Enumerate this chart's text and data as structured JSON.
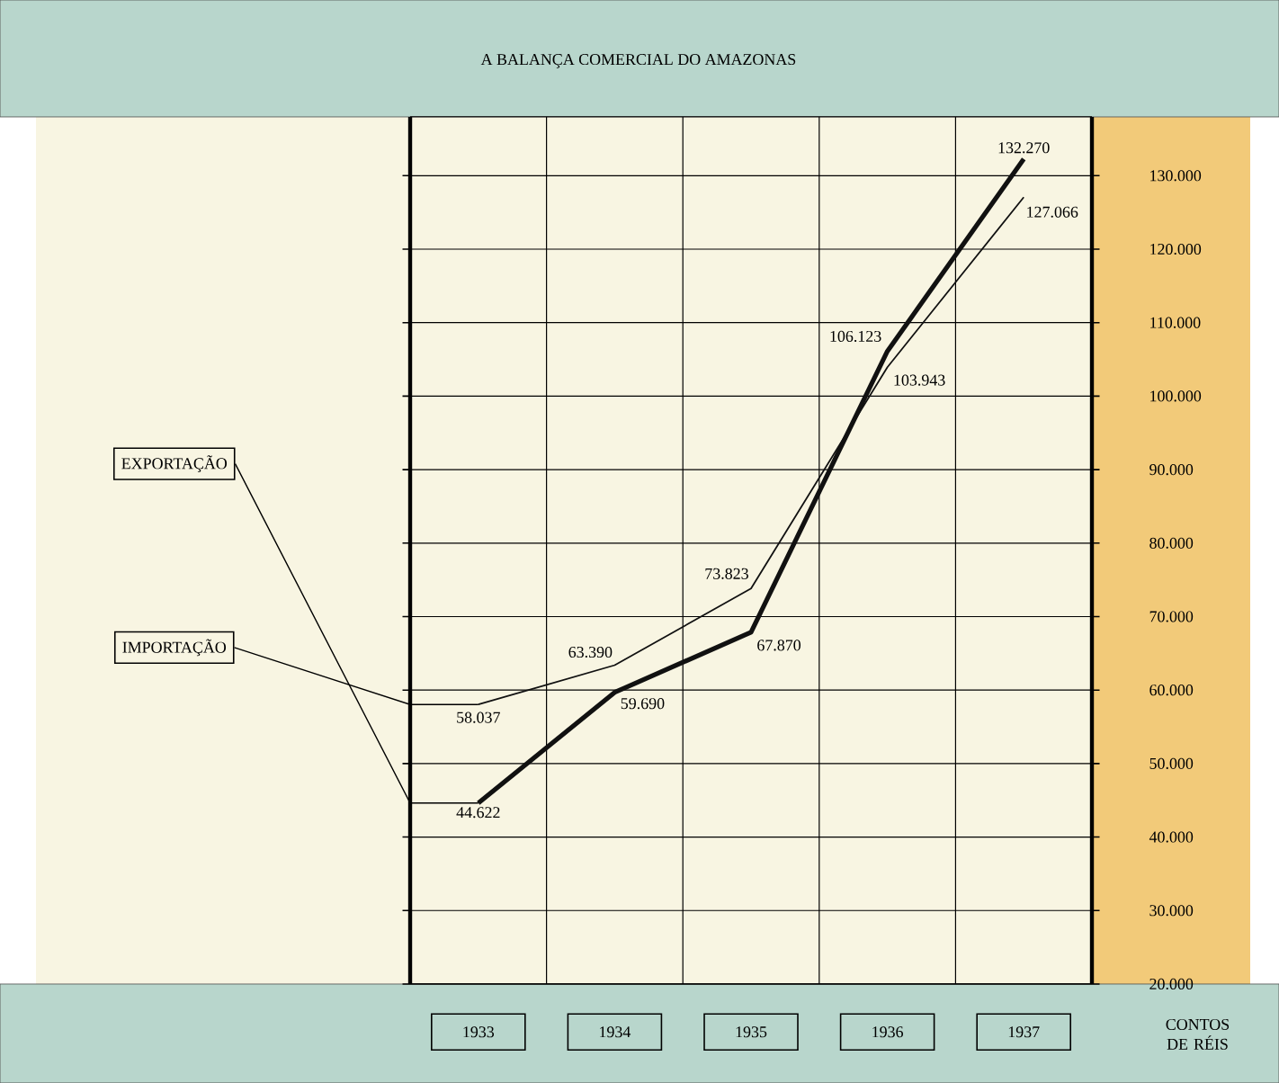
{
  "chart_data": {
    "type": "line",
    "title": "A BALANÇA COMERCIAL DO AMAZONAS",
    "ylabel": "CONTOS DE RÉIS",
    "categories": [
      "1933",
      "1934",
      "1935",
      "1936",
      "1937"
    ],
    "series": [
      {
        "name": "EXPORTAÇÃO",
        "color": "#111111",
        "values": [
          44622,
          59690,
          67870,
          106123,
          132270
        ],
        "value_labels": [
          "44.622",
          "59.690",
          "67.870",
          "106.123",
          "132.270"
        ]
      },
      {
        "name": "IMPORTAÇÃO",
        "color": "#111111",
        "values": [
          58037,
          63390,
          73823,
          103943,
          127066
        ],
        "value_labels": [
          "58.037",
          "63.390",
          "73.823",
          "103.943",
          "127.066"
        ]
      }
    ],
    "ylim": [
      20000,
      138000
    ],
    "yticks": [
      {
        "value": 20000,
        "label": "20.000"
      },
      {
        "value": 30000,
        "label": "30.000"
      },
      {
        "value": 40000,
        "label": "40.000"
      },
      {
        "value": 50000,
        "label": "50.000"
      },
      {
        "value": 60000,
        "label": "60.000"
      },
      {
        "value": 70000,
        "label": "70.000"
      },
      {
        "value": 80000,
        "label": "80.000"
      },
      {
        "value": 90000,
        "label": "90.000"
      },
      {
        "value": 100000,
        "label": "100.000"
      },
      {
        "value": 110000,
        "label": "110.000"
      },
      {
        "value": 120000,
        "label": "120.000"
      },
      {
        "value": 130000,
        "label": "130.000"
      }
    ],
    "grid": true,
    "marker": "none",
    "line_style": "solid"
  }
}
